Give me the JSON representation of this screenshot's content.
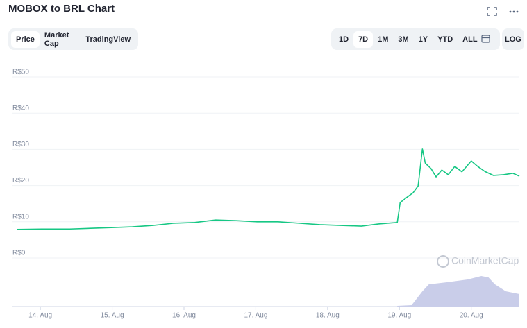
{
  "header": {
    "title": "MOBOX to BRL Chart"
  },
  "tabs": [
    "Price",
    "Market Cap",
    "TradingView"
  ],
  "ranges": [
    "1D",
    "7D",
    "1M",
    "3M",
    "1Y",
    "YTD",
    "ALL"
  ],
  "log_button": "LOG",
  "chart_data": {
    "type": "line",
    "watermark": "CoinMarketCap",
    "x": [
      13.67,
      14.02,
      14.41,
      14.7,
      14.99,
      15.28,
      15.57,
      15.86,
      16.15,
      16.44,
      16.73,
      17.02,
      17.31,
      17.6,
      17.89,
      18.18,
      18.47,
      18.71,
      18.97,
      19.01,
      19.1,
      19.19,
      19.26,
      19.32,
      19.36,
      19.44,
      19.51,
      19.59,
      19.68,
      19.77,
      19.87,
      20.0,
      20.09,
      20.19,
      20.31,
      20.45,
      20.58,
      20.67
    ],
    "values": [
      7.9,
      8.0,
      8.0,
      8.2,
      8.4,
      8.6,
      9.0,
      9.6,
      9.8,
      10.5,
      10.3,
      10.0,
      10.0,
      9.6,
      9.2,
      9.0,
      8.8,
      9.4,
      9.8,
      15.3,
      16.7,
      18.0,
      19.9,
      30.1,
      26.2,
      24.7,
      22.4,
      24.3,
      23.0,
      25.3,
      23.8,
      26.8,
      25.3,
      23.9,
      22.8,
      23.0,
      23.4,
      22.6
    ],
    "color": "#16c784",
    "xlim": [
      13.67,
      20.67
    ],
    "xticks": [
      {
        "value": 14,
        "label": "14. Aug"
      },
      {
        "value": 15,
        "label": "15. Aug"
      },
      {
        "value": 16,
        "label": "16. Aug"
      },
      {
        "value": 17,
        "label": "17. Aug"
      },
      {
        "value": 18,
        "label": "18. Aug"
      },
      {
        "value": 19,
        "label": "19. Aug"
      },
      {
        "value": 20,
        "label": "20. Aug"
      }
    ],
    "ylim": [
      0,
      50
    ],
    "yticks": [
      {
        "value": 0,
        "label": "R$0"
      },
      {
        "value": 10,
        "label": "R$10"
      },
      {
        "value": 20,
        "label": "R$20"
      },
      {
        "value": 30,
        "label": "R$30"
      },
      {
        "value": 40,
        "label": "R$40"
      },
      {
        "value": 50,
        "label": "R$50"
      }
    ],
    "grid": true,
    "volume": {
      "x": [
        18.97,
        19.17,
        19.32,
        19.41,
        19.66,
        19.95,
        20.14,
        20.24,
        20.33,
        20.48,
        20.67
      ],
      "values": [
        2,
        4,
        44,
        64,
        70,
        78,
        88,
        84,
        64,
        44,
        36
      ],
      "ylim": [
        0,
        100
      ],
      "color": "#c9cde9"
    }
  }
}
